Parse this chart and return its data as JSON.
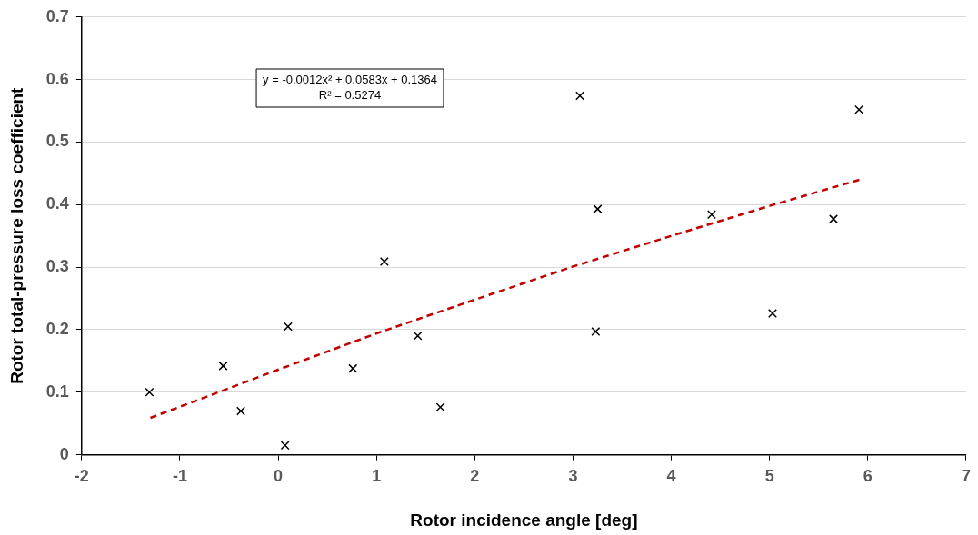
{
  "chart_data": {
    "type": "scatter",
    "xlabel": "Rotor incidence angle [deg]",
    "ylabel": "Rotor total-pressure loss coefficient",
    "annotations": [
      "y = -0.0012x² + 0.0583x + 0.1364",
      "R² = 0.5274"
    ],
    "series": [
      {
        "color": "#000000",
        "marker": "cross",
        "x": [
          -1.31,
          -0.56,
          -0.38,
          0.07,
          0.1,
          0.76,
          1.08,
          1.42,
          1.65,
          3.07,
          3.23,
          3.25,
          4.41,
          5.03,
          5.65,
          5.91
        ],
        "values": [
          0.1,
          0.142,
          0.07,
          0.015,
          0.205,
          0.138,
          0.309,
          0.19,
          0.076,
          0.574,
          0.197,
          0.393,
          0.384,
          0.226,
          0.377,
          0.552
        ]
      },
      {
        "type": "line",
        "color": "#c00000",
        "line_style": "dashed",
        "marker": "none",
        "x": [
          -1.3,
          0,
          1,
          2,
          3,
          4,
          5,
          5.92
        ],
        "values": [
          0.059,
          0.136,
          0.194,
          0.248,
          0.301,
          0.35,
          0.398,
          0.44
        ]
      }
    ],
    "xlim": [
      -2,
      7
    ],
    "xticks": [
      -2,
      -1,
      0,
      1,
      2,
      3,
      4,
      5,
      6,
      7
    ],
    "ylim": [
      0,
      0.7
    ],
    "yticks": [
      0,
      0.1,
      0.2,
      0.3,
      0.4,
      0.5,
      0.6,
      0.7
    ],
    "grid": "y",
    "legend": false
  }
}
